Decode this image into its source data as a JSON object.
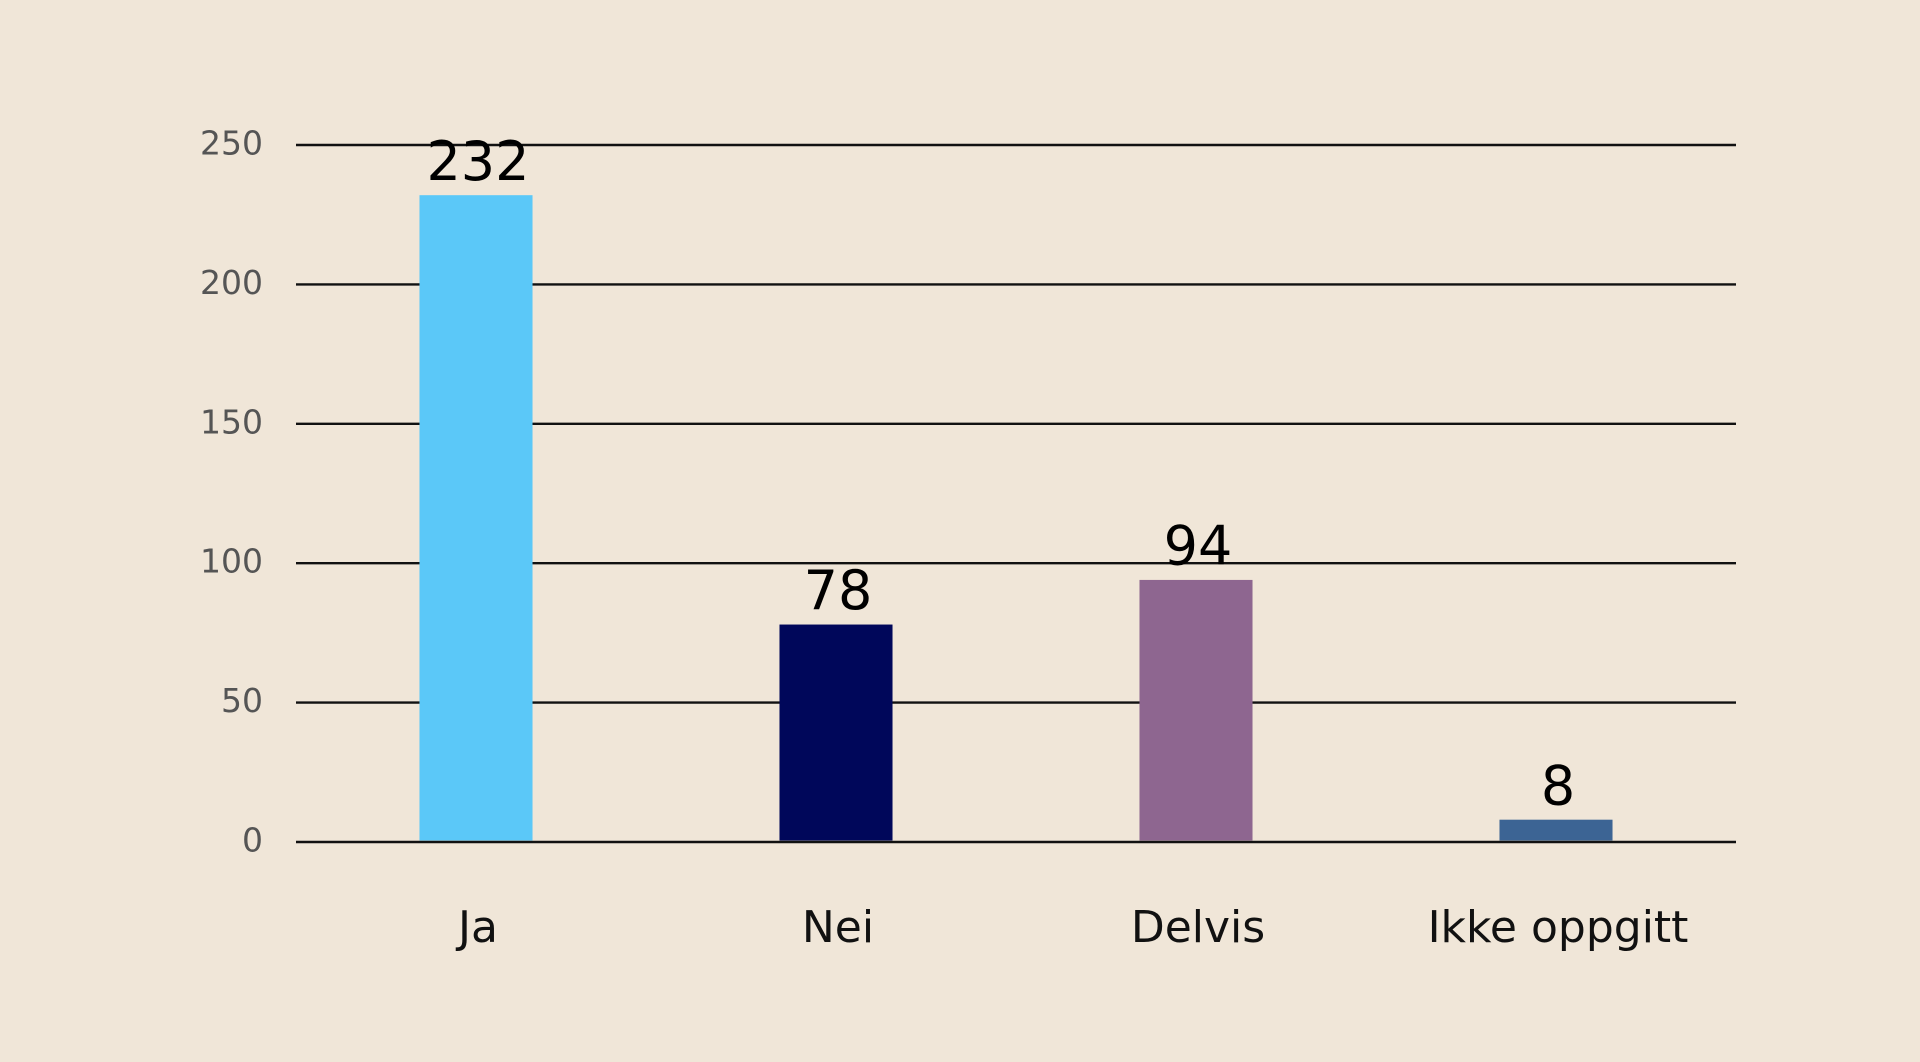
{
  "chart_data": {
    "type": "bar",
    "categories": [
      "Ja",
      "Nei",
      "Delvis",
      "Ikke oppgitt"
    ],
    "values": [
      232,
      78,
      94,
      8
    ],
    "colors": [
      "#5bc8f8",
      "#00075a",
      "#8e6690",
      "#3c6494"
    ],
    "ylim": [
      0,
      250
    ],
    "yticks": [
      0,
      50,
      100,
      150,
      200,
      250
    ],
    "grid": true
  }
}
